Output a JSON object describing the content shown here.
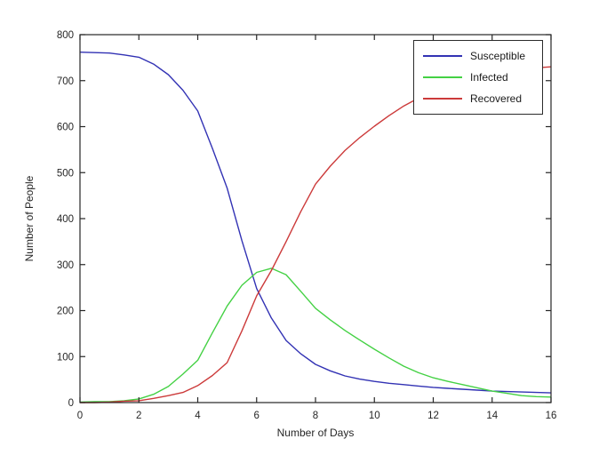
{
  "figure": {
    "background": "#ffffff",
    "axis_color": "#262626"
  },
  "chart_data": {
    "type": "line",
    "title": "",
    "xlabel": "Number of Days",
    "ylabel": "Number of People",
    "xlim": [
      0,
      16
    ],
    "ylim": [
      0,
      800
    ],
    "x_ticks": [
      0,
      2,
      4,
      6,
      8,
      10,
      12,
      14,
      16
    ],
    "y_ticks": [
      0,
      100,
      200,
      300,
      400,
      500,
      600,
      700,
      800
    ],
    "grid": false,
    "legend_position": "top-right",
    "x": [
      0,
      0.5,
      1,
      1.5,
      2,
      2.5,
      3,
      3.5,
      4,
      4.5,
      5,
      5.5,
      6,
      6.5,
      7,
      7.5,
      8,
      8.5,
      9,
      9.5,
      10,
      10.5,
      11,
      11.5,
      12,
      12.5,
      13,
      13.5,
      14,
      14.5,
      15,
      15.5,
      16
    ],
    "series": [
      {
        "name": "Susceptible",
        "color": "#3232b4",
        "values": [
          762,
          761,
          760,
          756,
          751,
          736,
          713,
          679,
          634,
          552,
          466,
          352,
          248,
          184,
          135,
          106,
          83,
          69,
          58,
          51,
          46,
          42,
          39,
          36,
          33,
          31,
          29,
          27,
          25,
          24,
          23,
          22,
          21
        ]
      },
      {
        "name": "Infected",
        "color": "#44d144",
        "values": [
          1,
          2,
          2,
          4,
          8,
          18,
          35,
          62,
          92,
          152,
          210,
          255,
          283,
          292,
          278,
          242,
          205,
          180,
          157,
          136,
          116,
          97,
          79,
          65,
          54,
          46,
          39,
          32,
          25,
          20,
          15,
          13,
          12
        ]
      },
      {
        "name": "Recovered",
        "color": "#cc3a3a",
        "values": [
          0,
          0,
          1,
          3,
          4,
          9,
          15,
          22,
          37,
          59,
          87,
          156,
          232,
          287,
          350,
          415,
          475,
          514,
          548,
          576,
          601,
          624,
          645,
          662,
          676,
          686,
          695,
          704,
          713,
          719,
          725,
          728,
          730
        ]
      }
    ]
  }
}
